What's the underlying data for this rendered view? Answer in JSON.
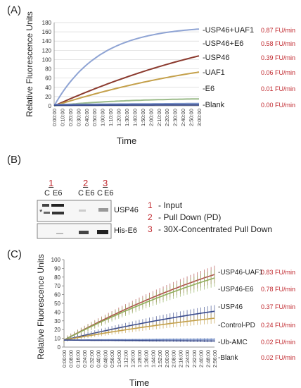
{
  "panels": {
    "a": "(A)",
    "b": "(B)",
    "c": "(C)"
  },
  "chart_data": [
    {
      "type": "line",
      "panel": "(A)",
      "ylabel": "Relative Fluorescence Units",
      "xlabel": "Time",
      "ylim": [
        0,
        180
      ],
      "yticks": [
        0,
        20,
        40,
        60,
        80,
        100,
        120,
        140,
        160,
        180
      ],
      "xticks": [
        "0:00:00",
        "0:10:00",
        "0:20:00",
        "0:30:00",
        "0:40:00",
        "0:50:00",
        "1:00:00",
        "1:10:00",
        "1:20:00",
        "1:30:00",
        "1:40:00",
        "1:50:00",
        "2:00:00",
        "2:10:00",
        "2:20:00",
        "2:30:00",
        "2:40:00",
        "2:50:00",
        "3:00:00"
      ],
      "grid": true,
      "legend": "right",
      "series": [
        {
          "name": "USP46+UAF1",
          "rate": "0.87 FU/min",
          "color": "#8fa4d4",
          "final": 166,
          "shape": "sat",
          "k": 1.6
        },
        {
          "name": "USP46+E6",
          "rate": "0.58 FU/min",
          "color": "#8b3a2e",
          "final": 108,
          "shape": "lin",
          "k": 0.3
        },
        {
          "name": "USP46",
          "rate": "0.39 FU/min",
          "color": "#c4a04a",
          "final": 73,
          "shape": "lin",
          "k": 0.35
        },
        {
          "name": "UAF1",
          "rate": "0.06 FU/min",
          "color": "#9bbb8a",
          "final": 15,
          "shape": "sat",
          "k": 1.0
        },
        {
          "name": "E6",
          "rate": "0.01 FU/min",
          "color": "#7a93c9",
          "final": 5,
          "shape": "lin",
          "k": 0
        },
        {
          "name": "Blank",
          "rate": "0.00 FU/min",
          "color": "#3a4b8c",
          "final": 2,
          "shape": "lin",
          "k": 0
        }
      ]
    },
    {
      "type": "line",
      "panel": "(C)",
      "ylabel": "Relative Fluorescence Units",
      "xlabel": "Time",
      "ylim": [
        0,
        100
      ],
      "yticks": [
        0,
        10,
        20,
        30,
        40,
        50,
        60,
        70,
        80,
        90,
        100
      ],
      "xticks": [
        "0:00:00",
        "0:08:00",
        "0:16:00",
        "0:24:00",
        "0:32:00",
        "0:40:00",
        "0:48:00",
        "0:56:00",
        "1:04:00",
        "1:12:00",
        "1:20:00",
        "1:28:00",
        "1:36:00",
        "1:44:00",
        "1:52:00",
        "2:00:00",
        "2:08:00",
        "2:16:00",
        "2:24:00",
        "2:32:00",
        "2:40:00",
        "2:48:00",
        "2:56:00"
      ],
      "grid": false,
      "legend": "right",
      "series": [
        {
          "name": "USP46-UAF1",
          "rate": "0.83 FU/min",
          "color": "#b04a4a",
          "start": 8,
          "final": 83,
          "err": 10
        },
        {
          "name": "USP46-E6",
          "rate": "0.78 FU/min",
          "color": "#8fae5a",
          "start": 8,
          "final": 79,
          "err": 10
        },
        {
          "name": "USP46",
          "rate": "0.37 FU/min",
          "color": "#3a4b8c",
          "start": 8,
          "final": 41,
          "err": 7
        },
        {
          "name": "Control-PD",
          "rate": "0.24 FU/min",
          "color": "#c4a04a",
          "start": 8,
          "final": 33,
          "err": 6
        },
        {
          "name": "Ub-AMC",
          "rate": "0.02 FU/min",
          "color": "#7a93c9",
          "start": 8,
          "final": 9,
          "err": 1.5
        },
        {
          "name": "Blank",
          "rate": "0.02 FU/min",
          "color": "#3a4b8c",
          "start": 8,
          "final": 7,
          "err": 1.5
        }
      ]
    }
  ],
  "blot": {
    "lane_groups": [
      "1",
      "2",
      "3"
    ],
    "lanes": [
      "C",
      "E6",
      "C",
      "E6",
      "C",
      "E6"
    ],
    "bands": [
      "USP46",
      "His-E6"
    ],
    "asterisk": "*",
    "legend": [
      {
        "num": "1",
        "text": " - Input"
      },
      {
        "num": "2",
        "text": " - Pull Down (PD)"
      },
      {
        "num": "3",
        "text": " - 30X-Concentrated Pull Down"
      }
    ]
  }
}
